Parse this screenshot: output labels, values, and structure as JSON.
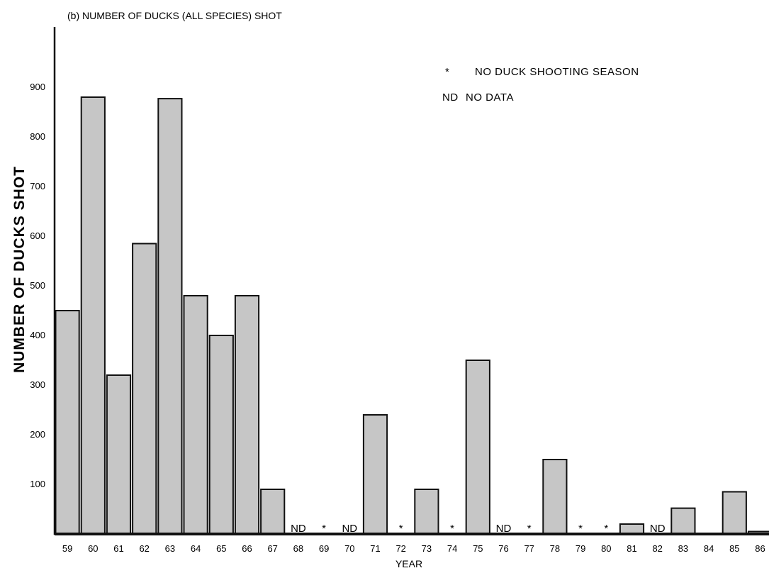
{
  "chart_data": {
    "type": "bar",
    "title": "(b) NUMBER OF DUCKS (ALL SPECIES) SHOT",
    "xlabel": "YEAR",
    "ylabel": "NUMBER OF DUCKS SHOT",
    "ylim": [
      0,
      980
    ],
    "yticks": [
      100,
      200,
      300,
      400,
      500,
      600,
      700,
      800,
      900
    ],
    "categories": [
      "59",
      "60",
      "61",
      "62",
      "63",
      "64",
      "65",
      "66",
      "67",
      "68",
      "69",
      "70",
      "71",
      "72",
      "73",
      "74",
      "75",
      "76",
      "77",
      "78",
      "79",
      "80",
      "81",
      "82",
      "83",
      "84",
      "85",
      "86"
    ],
    "values": [
      450,
      880,
      320,
      585,
      877,
      480,
      400,
      480,
      90,
      null,
      null,
      null,
      240,
      null,
      90,
      null,
      350,
      null,
      null,
      150,
      null,
      null,
      20,
      null,
      52,
      0,
      85,
      5
    ],
    "markers": [
      "",
      "",
      "",
      "",
      "",
      "",
      "",
      "",
      "",
      "ND",
      "*",
      "ND",
      "",
      "*",
      "",
      "*",
      "",
      "ND",
      "*",
      "",
      "*",
      "*",
      "",
      "ND",
      "",
      "",
      "",
      ""
    ],
    "legend": [
      {
        "symbol": "*",
        "label": "NO DUCK SHOOTING SEASON"
      },
      {
        "symbol": "ND",
        "label": "NO DATA"
      }
    ],
    "legend_position": "top-right",
    "grid": false,
    "bar_color": "#c6c6c6",
    "edge_color": "#111111"
  }
}
